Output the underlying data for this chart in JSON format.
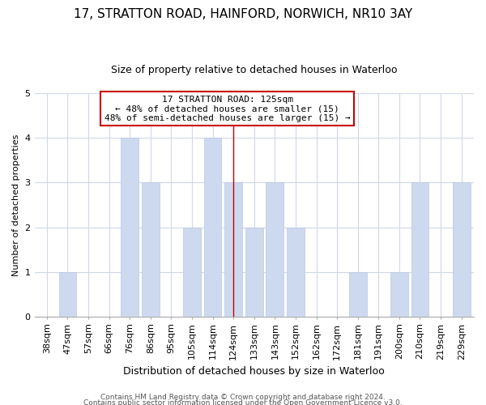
{
  "title1": "17, STRATTON ROAD, HAINFORD, NORWICH, NR10 3AY",
  "title2": "Size of property relative to detached houses in Waterloo",
  "xlabel": "Distribution of detached houses by size in Waterloo",
  "ylabel": "Number of detached properties",
  "bar_labels": [
    "38sqm",
    "47sqm",
    "57sqm",
    "66sqm",
    "76sqm",
    "86sqm",
    "95sqm",
    "105sqm",
    "114sqm",
    "124sqm",
    "133sqm",
    "143sqm",
    "152sqm",
    "162sqm",
    "172sqm",
    "181sqm",
    "191sqm",
    "200sqm",
    "210sqm",
    "219sqm",
    "229sqm"
  ],
  "bar_values": [
    0,
    1,
    0,
    0,
    4,
    3,
    0,
    2,
    4,
    3,
    2,
    3,
    2,
    0,
    0,
    1,
    0,
    1,
    3,
    0,
    3
  ],
  "bar_color": "#cdd9ee",
  "bar_edge_color": "#b8c8e4",
  "highlight_index": 9,
  "highlight_line_color": "#cc0000",
  "annotation_title": "17 STRATTON ROAD: 125sqm",
  "annotation_line1": "← 48% of detached houses are smaller (15)",
  "annotation_line2": "48% of semi-detached houses are larger (15) →",
  "annotation_box_facecolor": "#ffffff",
  "annotation_box_edgecolor": "#cc0000",
  "footer1": "Contains HM Land Registry data © Crown copyright and database right 2024.",
  "footer2": "Contains public sector information licensed under the Open Government Licence v3.0.",
  "ylim": [
    0,
    5
  ],
  "yticks": [
    0,
    1,
    2,
    3,
    4,
    5
  ],
  "title1_fontsize": 11,
  "title2_fontsize": 9,
  "ylabel_fontsize": 8,
  "xlabel_fontsize": 9,
  "tick_fontsize": 8,
  "annotation_fontsize": 8,
  "footer_fontsize": 6.5,
  "grid_color": "#d0d8e8",
  "background_color": "#ffffff"
}
